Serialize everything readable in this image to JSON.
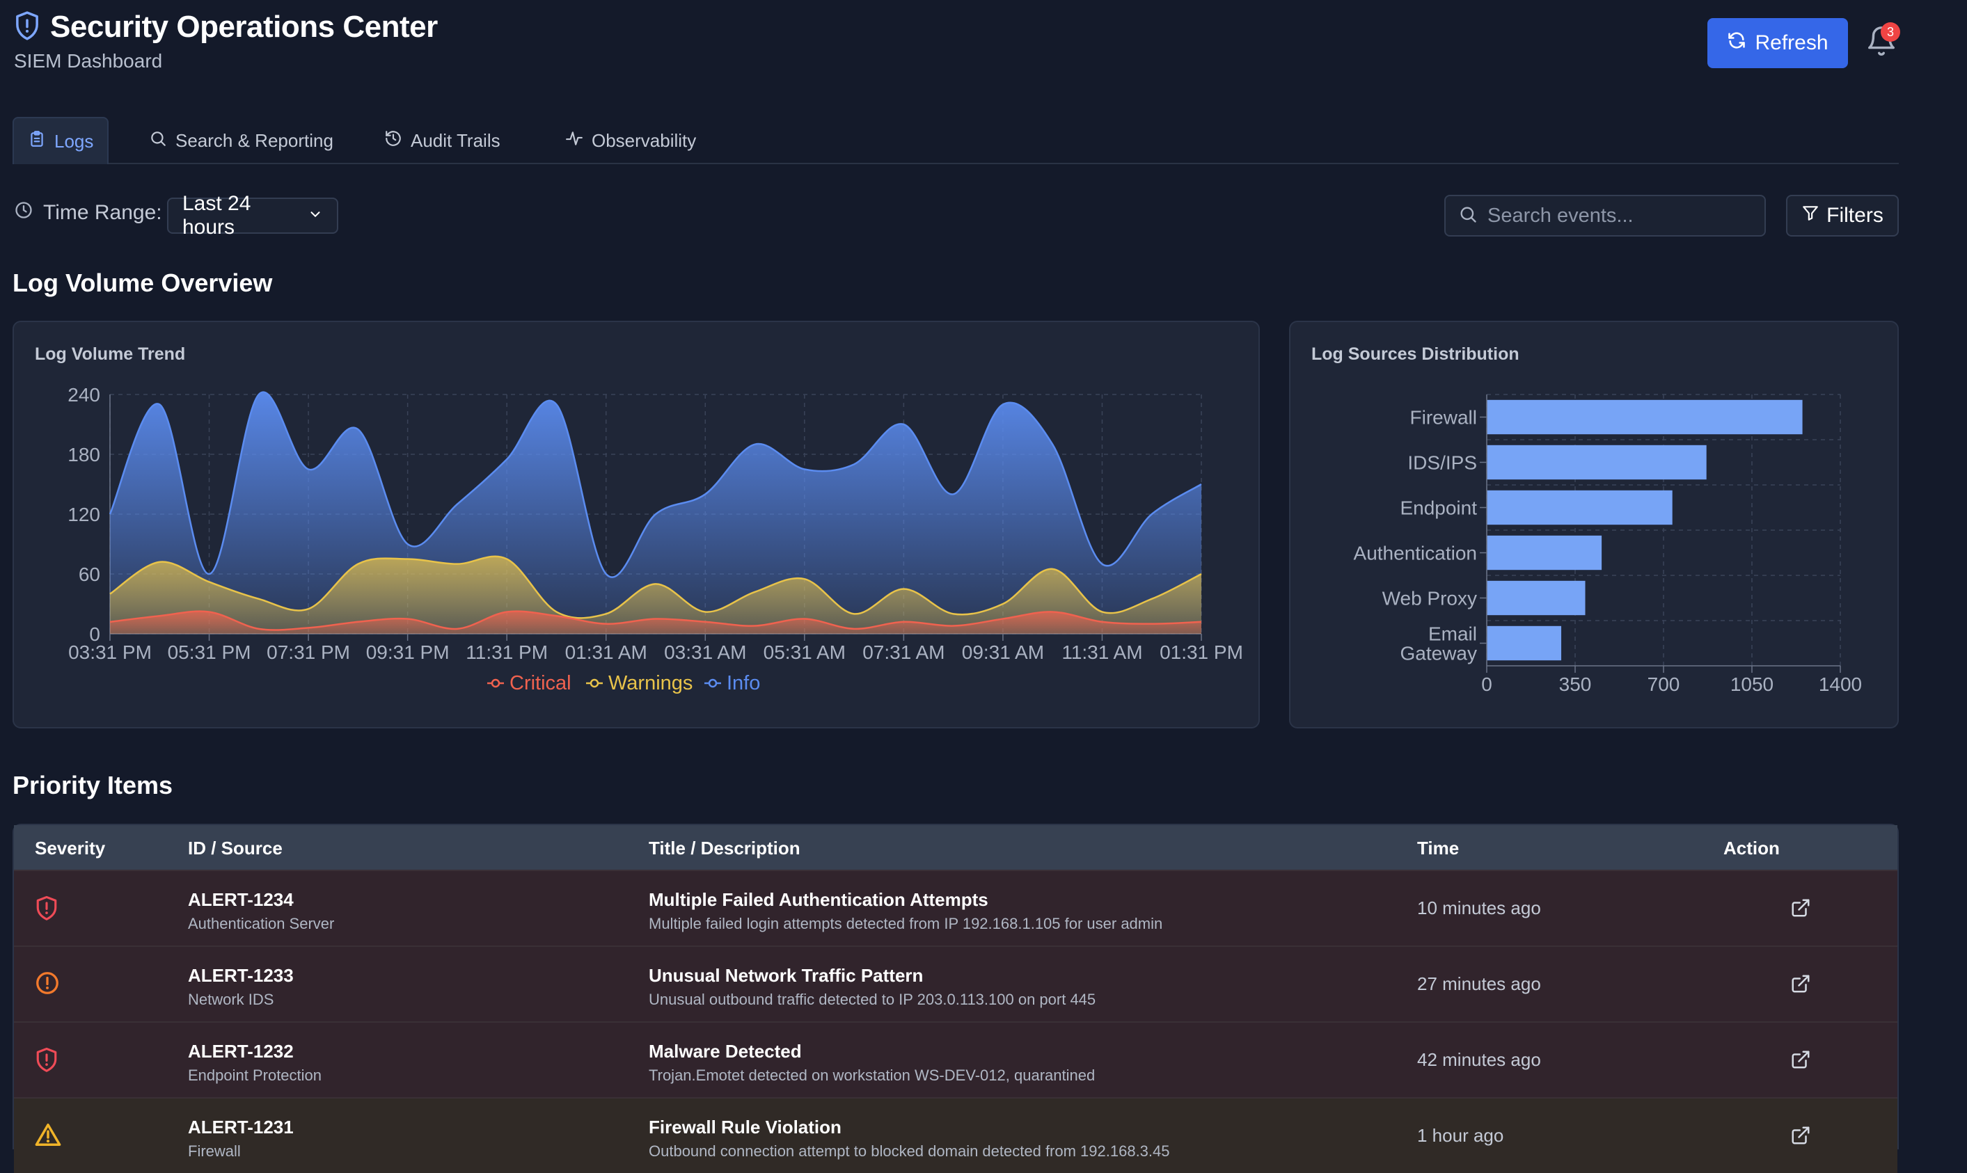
{
  "header": {
    "title": "Security Operations Center",
    "subtitle": "SIEM Dashboard",
    "refresh_label": "Refresh",
    "notification_count": "3"
  },
  "tabs": [
    {
      "label": "Logs",
      "icon": "clipboard-icon",
      "active": true
    },
    {
      "label": "Search & Reporting",
      "icon": "search-icon",
      "active": false
    },
    {
      "label": "Audit Trails",
      "icon": "history-icon",
      "active": false
    },
    {
      "label": "Observability",
      "icon": "activity-icon",
      "active": false
    }
  ],
  "toolbar": {
    "time_range_label": "Time Range:",
    "time_range_value": "Last 24 hours",
    "search_placeholder": "Search events...",
    "filters_label": "Filters"
  },
  "sections": {
    "overview_title": "Log Volume Overview",
    "priority_title": "Priority Items"
  },
  "colors": {
    "critical": "#f0624f",
    "warnings": "#e8c34a",
    "info": "#5b8cf0",
    "bar": "#77a4f6",
    "accent": "#3567e8"
  },
  "chart_data": [
    {
      "type": "area",
      "title": "Log Volume Trend",
      "x": [
        "03:31 PM",
        "04:31 PM",
        "05:31 PM",
        "06:31 PM",
        "07:31 PM",
        "08:31 PM",
        "09:31 PM",
        "10:31 PM",
        "11:31 PM",
        "12:31 AM",
        "01:31 AM",
        "02:31 AM",
        "03:31 AM",
        "04:31 AM",
        "05:31 AM",
        "06:31 AM",
        "07:31 AM",
        "08:31 AM",
        "09:31 AM",
        "10:31 AM",
        "11:31 AM",
        "12:31 PM",
        "01:31 PM"
      ],
      "xticks": [
        "03:31 PM",
        "05:31 PM",
        "07:31 PM",
        "09:31 PM",
        "11:31 PM",
        "01:31 AM",
        "03:31 AM",
        "05:31 AM",
        "07:31 AM",
        "09:31 AM",
        "11:31 AM",
        "01:31 PM"
      ],
      "ylim": [
        0,
        240
      ],
      "yticks": [
        0,
        60,
        120,
        180,
        240
      ],
      "series": [
        {
          "name": "Critical",
          "values": [
            12,
            18,
            22,
            5,
            6,
            12,
            15,
            5,
            22,
            18,
            10,
            15,
            12,
            8,
            15,
            5,
            12,
            8,
            15,
            22,
            12,
            10,
            12
          ]
        },
        {
          "name": "Warnings",
          "values": [
            40,
            72,
            52,
            35,
            25,
            70,
            75,
            70,
            75,
            22,
            20,
            50,
            22,
            42,
            55,
            20,
            45,
            20,
            30,
            65,
            22,
            35,
            60
          ]
        },
        {
          "name": "Info",
          "values": [
            120,
            230,
            60,
            240,
            165,
            205,
            90,
            130,
            175,
            230,
            60,
            120,
            140,
            190,
            165,
            170,
            210,
            140,
            230,
            190,
            70,
            120,
            150
          ]
        }
      ],
      "legend": "bottom-center",
      "grid": true
    },
    {
      "type": "bar",
      "orientation": "horizontal",
      "title": "Log Sources Distribution",
      "categories": [
        "Firewall",
        "IDS/IPS",
        "Endpoint",
        "Authentication",
        "Web Proxy",
        "Email Gateway"
      ],
      "values": [
        1250,
        870,
        735,
        455,
        390,
        295
      ],
      "xlim": [
        0,
        1400
      ],
      "xticks": [
        0,
        350,
        700,
        1050,
        1400
      ],
      "grid": true
    }
  ],
  "table": {
    "headers": [
      "Severity",
      "ID / Source",
      "Title / Description",
      "Time",
      "Action"
    ],
    "rows": [
      {
        "severity": "critical",
        "icon": "shield-alert-icon",
        "id": "ALERT-1234",
        "source": "Authentication Server",
        "title": "Multiple Failed Authentication Attempts",
        "description": "Multiple failed login attempts detected from IP 192.168.1.105 for user admin",
        "time": "10 minutes ago"
      },
      {
        "severity": "high",
        "icon": "alert-circle-icon",
        "id": "ALERT-1233",
        "source": "Network IDS",
        "title": "Unusual Network Traffic Pattern",
        "description": "Unusual outbound traffic detected to IP 203.0.113.100 on port 445",
        "time": "27 minutes ago"
      },
      {
        "severity": "critical",
        "icon": "shield-alert-icon",
        "id": "ALERT-1232",
        "source": "Endpoint Protection",
        "title": "Malware Detected",
        "description": "Trojan.Emotet detected on workstation WS-DEV-012, quarantined",
        "time": "42 minutes ago"
      },
      {
        "severity": "medium",
        "icon": "warning-triangle-icon",
        "id": "ALERT-1231",
        "source": "Firewall",
        "title": "Firewall Rule Violation",
        "description": "Outbound connection attempt to blocked domain detected from 192.168.3.45",
        "time": "1 hour ago"
      }
    ]
  }
}
